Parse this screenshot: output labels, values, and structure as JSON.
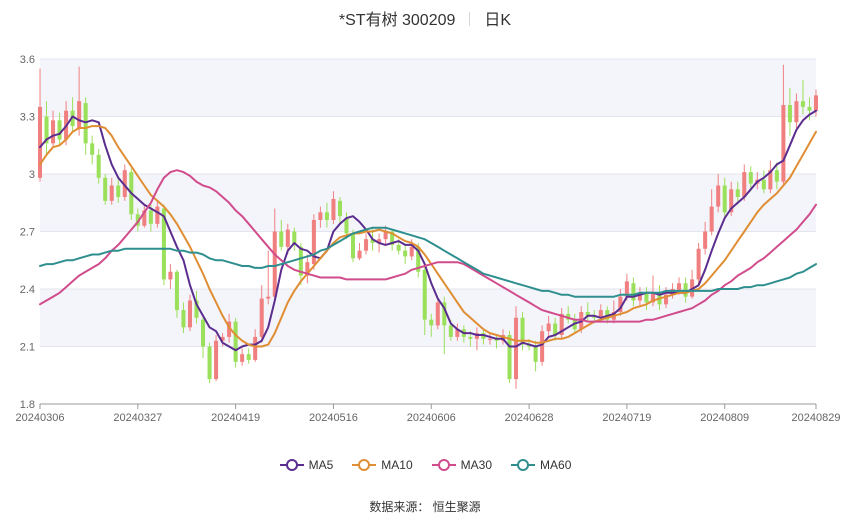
{
  "header": {
    "title": "*ST有树 300209",
    "period": "日K"
  },
  "source": "数据来源： 恒生聚源",
  "chart_data": {
    "type": "candlestick",
    "ylim": [
      1.8,
      3.6
    ],
    "yticks": [
      "1.8",
      "2.1",
      "2.4",
      "2.7",
      "3",
      "3.3",
      "3.6"
    ],
    "grid": true,
    "legend_position": "bottom",
    "up_color": "#f08080",
    "down_color": "#9be05a",
    "xlabels": [
      {
        "idx": 0,
        "label": "20240306"
      },
      {
        "idx": 15,
        "label": "20240327"
      },
      {
        "idx": 30,
        "label": "20240419"
      },
      {
        "idx": 45,
        "label": "20240516"
      },
      {
        "idx": 60,
        "label": "20240606"
      },
      {
        "idx": 75,
        "label": "20240628"
      },
      {
        "idx": 90,
        "label": "20240719"
      },
      {
        "idx": 105,
        "label": "20240809"
      },
      {
        "idx": 119,
        "label": "20240829"
      }
    ],
    "candles": [
      [
        2.98,
        3.35,
        3.55,
        2.96
      ],
      [
        3.3,
        3.16,
        3.38,
        3.1
      ],
      [
        3.16,
        3.28,
        3.33,
        3.14
      ],
      [
        3.28,
        3.18,
        3.32,
        3.15
      ],
      [
        3.18,
        3.33,
        3.38,
        3.15
      ],
      [
        3.33,
        3.25,
        3.4,
        3.22
      ],
      [
        3.24,
        3.38,
        3.56,
        3.2
      ],
      [
        3.37,
        3.16,
        3.4,
        3.1
      ],
      [
        3.16,
        3.1,
        3.2,
        3.05
      ],
      [
        3.1,
        2.98,
        3.13,
        2.95
      ],
      [
        2.98,
        2.86,
        3.0,
        2.84
      ],
      [
        2.86,
        2.94,
        2.98,
        2.84
      ],
      [
        2.94,
        2.88,
        2.99,
        2.85
      ],
      [
        2.88,
        3.02,
        3.05,
        2.86
      ],
      [
        3.01,
        2.79,
        3.03,
        2.76
      ],
      [
        2.79,
        2.73,
        2.82,
        2.7
      ],
      [
        2.73,
        2.81,
        2.84,
        2.72
      ],
      [
        2.81,
        2.74,
        2.84,
        2.7
      ],
      [
        2.74,
        2.83,
        2.86,
        2.72
      ],
      [
        2.82,
        2.45,
        2.84,
        2.42
      ],
      [
        2.45,
        2.49,
        2.53,
        2.4
      ],
      [
        2.49,
        2.29,
        2.5,
        2.25
      ],
      [
        2.29,
        2.2,
        2.33,
        2.17
      ],
      [
        2.2,
        2.34,
        2.37,
        2.18
      ],
      [
        2.34,
        2.25,
        2.39,
        2.22
      ],
      [
        2.24,
        2.1,
        2.26,
        2.04
      ],
      [
        2.1,
        1.93,
        2.12,
        1.91
      ],
      [
        1.93,
        2.13,
        2.16,
        1.92
      ],
      [
        2.13,
        2.15,
        2.17,
        2.1
      ],
      [
        2.15,
        2.23,
        2.27,
        2.12
      ],
      [
        2.23,
        2.02,
        2.25,
        1.99
      ],
      [
        2.02,
        2.06,
        2.09,
        2.0
      ],
      [
        2.06,
        2.03,
        2.09,
        2.01
      ],
      [
        2.03,
        2.15,
        2.19,
        2.02
      ],
      [
        2.15,
        2.35,
        2.42,
        2.12
      ],
      [
        2.35,
        2.36,
        2.6,
        2.32
      ],
      [
        2.36,
        2.7,
        2.82,
        2.35
      ],
      [
        2.7,
        2.62,
        2.76,
        2.6
      ],
      [
        2.62,
        2.71,
        2.74,
        2.58
      ],
      [
        2.7,
        2.63,
        2.72,
        2.6
      ],
      [
        2.62,
        2.47,
        2.64,
        2.42
      ],
      [
        2.47,
        2.54,
        2.58,
        2.43
      ],
      [
        2.53,
        2.76,
        2.79,
        2.5
      ],
      [
        2.76,
        2.8,
        2.83,
        2.72
      ],
      [
        2.8,
        2.76,
        2.85,
        2.72
      ],
      [
        2.76,
        2.87,
        2.91,
        2.74
      ],
      [
        2.86,
        2.78,
        2.88,
        2.74
      ],
      [
        2.77,
        2.69,
        2.8,
        2.66
      ],
      [
        2.69,
        2.56,
        2.71,
        2.54
      ],
      [
        2.56,
        2.6,
        2.64,
        2.55
      ],
      [
        2.6,
        2.66,
        2.69,
        2.58
      ],
      [
        2.66,
        2.64,
        2.72,
        2.6
      ],
      [
        2.64,
        2.66,
        2.69,
        2.59
      ],
      [
        2.66,
        2.7,
        2.73,
        2.63
      ],
      [
        2.7,
        2.63,
        2.71,
        2.6
      ],
      [
        2.63,
        2.6,
        2.66,
        2.58
      ],
      [
        2.6,
        2.57,
        2.63,
        2.53
      ],
      [
        2.57,
        2.62,
        2.66,
        2.55
      ],
      [
        2.62,
        2.49,
        2.64,
        2.46
      ],
      [
        2.5,
        2.24,
        2.52,
        2.16
      ],
      [
        2.24,
        2.21,
        2.27,
        2.15
      ],
      [
        2.21,
        2.33,
        2.35,
        2.19
      ],
      [
        2.33,
        2.21,
        2.36,
        2.06
      ],
      [
        2.21,
        2.15,
        2.24,
        2.13
      ],
      [
        2.15,
        2.19,
        2.22,
        2.13
      ],
      [
        2.19,
        2.15,
        2.21,
        2.12
      ],
      [
        2.15,
        2.14,
        2.18,
        2.1
      ],
      [
        2.14,
        2.17,
        2.2,
        2.08
      ],
      [
        2.17,
        2.14,
        2.19,
        2.11
      ],
      [
        2.14,
        2.14,
        2.17,
        2.11
      ],
      [
        2.14,
        2.13,
        2.16,
        2.09
      ],
      [
        2.13,
        2.16,
        2.19,
        2.11
      ],
      [
        2.16,
        1.93,
        2.18,
        1.91
      ],
      [
        1.93,
        2.25,
        2.31,
        1.88
      ],
      [
        2.25,
        2.11,
        2.28,
        2.08
      ],
      [
        2.11,
        2.1,
        2.14,
        2.08
      ],
      [
        2.1,
        2.02,
        2.13,
        1.97
      ],
      [
        2.02,
        2.18,
        2.21,
        2.0
      ],
      [
        2.18,
        2.22,
        2.26,
        2.15
      ],
      [
        2.22,
        2.16,
        2.25,
        2.13
      ],
      [
        2.16,
        2.27,
        2.3,
        2.14
      ],
      [
        2.27,
        2.24,
        2.31,
        2.22
      ],
      [
        2.24,
        2.19,
        2.27,
        2.17
      ],
      [
        2.19,
        2.28,
        2.31,
        2.17
      ],
      [
        2.28,
        2.26,
        2.33,
        2.23
      ],
      [
        2.26,
        2.25,
        2.29,
        2.22
      ],
      [
        2.25,
        2.29,
        2.32,
        2.23
      ],
      [
        2.29,
        2.24,
        2.31,
        2.22
      ],
      [
        2.24,
        2.28,
        2.34,
        2.22
      ],
      [
        2.28,
        2.36,
        2.4,
        2.26
      ],
      [
        2.36,
        2.44,
        2.48,
        2.34
      ],
      [
        2.43,
        2.34,
        2.46,
        2.31
      ],
      [
        2.34,
        2.38,
        2.41,
        2.31
      ],
      [
        2.38,
        2.33,
        2.41,
        2.29
      ],
      [
        2.33,
        2.38,
        2.47,
        2.31
      ],
      [
        2.38,
        2.32,
        2.42,
        2.29
      ],
      [
        2.32,
        2.37,
        2.41,
        2.3
      ],
      [
        2.37,
        2.4,
        2.43,
        2.35
      ],
      [
        2.39,
        2.43,
        2.46,
        2.37
      ],
      [
        2.43,
        2.36,
        2.46,
        2.33
      ],
      [
        2.36,
        2.45,
        2.5,
        2.35
      ],
      [
        2.45,
        2.61,
        2.64,
        2.42
      ],
      [
        2.61,
        2.7,
        2.75,
        2.58
      ],
      [
        2.7,
        2.83,
        2.92,
        2.68
      ],
      [
        2.83,
        2.94,
        3.0,
        2.8
      ],
      [
        2.94,
        2.8,
        2.98,
        2.77
      ],
      [
        2.8,
        2.92,
        2.96,
        2.78
      ],
      [
        2.92,
        2.88,
        2.96,
        2.84
      ],
      [
        2.88,
        3.01,
        3.05,
        2.86
      ],
      [
        3.01,
        2.95,
        3.04,
        2.91
      ],
      [
        2.95,
        2.97,
        3.01,
        2.92
      ],
      [
        2.97,
        2.92,
        3.02,
        2.9
      ],
      [
        2.92,
        3.02,
        3.07,
        2.9
      ],
      [
        3.02,
        2.96,
        3.06,
        2.92
      ],
      [
        2.96,
        3.36,
        3.57,
        2.94
      ],
      [
        3.36,
        3.27,
        3.45,
        3.2
      ],
      [
        3.27,
        3.38,
        3.42,
        3.24
      ],
      [
        3.38,
        3.35,
        3.49,
        3.31
      ],
      [
        3.35,
        3.33,
        3.4,
        3.28
      ],
      [
        3.33,
        3.41,
        3.44,
        3.3
      ]
    ],
    "series": [
      {
        "name": "MA5",
        "color": "#5b2d8f",
        "values": [
          3.14,
          3.18,
          3.2,
          3.21,
          3.25,
          3.3,
          3.28,
          3.27,
          3.28,
          3.27,
          3.15,
          3.05,
          2.98,
          2.94,
          2.9,
          2.87,
          2.84,
          2.82,
          2.8,
          2.78,
          2.7,
          2.62,
          2.55,
          2.42,
          2.32,
          2.26,
          2.2,
          2.18,
          2.12,
          2.1,
          2.08,
          2.1,
          2.11,
          2.11,
          2.13,
          2.2,
          2.34,
          2.5,
          2.6,
          2.64,
          2.61,
          2.6,
          2.57,
          2.56,
          2.6,
          2.7,
          2.74,
          2.77,
          2.78,
          2.75,
          2.71,
          2.66,
          2.64,
          2.63,
          2.64,
          2.65,
          2.63,
          2.63,
          2.6,
          2.53,
          2.43,
          2.35,
          2.3,
          2.22,
          2.19,
          2.17,
          2.17,
          2.16,
          2.16,
          2.15,
          2.14,
          2.14,
          2.1,
          2.1,
          2.12,
          2.11,
          2.1,
          2.11,
          2.15,
          2.16,
          2.18,
          2.2,
          2.22,
          2.23,
          2.26,
          2.26,
          2.25,
          2.26,
          2.27,
          2.3,
          2.36,
          2.36,
          2.37,
          2.38,
          2.38,
          2.37,
          2.38,
          2.38,
          2.38,
          2.38,
          2.4,
          2.42,
          2.5,
          2.6,
          2.69,
          2.77,
          2.82,
          2.85,
          2.88,
          2.92,
          2.96,
          2.98,
          3.01,
          3.05,
          3.07,
          3.15,
          3.23,
          3.28,
          3.31,
          3.33
        ]
      },
      {
        "name": "MA10",
        "color": "#e08e33",
        "values": [
          3.05,
          3.1,
          3.14,
          3.15,
          3.18,
          3.22,
          3.24,
          3.24,
          3.25,
          3.25,
          3.24,
          3.2,
          3.14,
          3.09,
          3.04,
          2.99,
          2.94,
          2.89,
          2.86,
          2.83,
          2.79,
          2.74,
          2.68,
          2.62,
          2.55,
          2.48,
          2.4,
          2.33,
          2.26,
          2.2,
          2.16,
          2.13,
          2.11,
          2.1,
          2.1,
          2.11,
          2.17,
          2.25,
          2.33,
          2.39,
          2.44,
          2.48,
          2.52,
          2.56,
          2.6,
          2.64,
          2.67,
          2.68,
          2.69,
          2.69,
          2.7,
          2.7,
          2.71,
          2.7,
          2.69,
          2.67,
          2.65,
          2.64,
          2.62,
          2.58,
          2.53,
          2.48,
          2.43,
          2.38,
          2.33,
          2.28,
          2.25,
          2.22,
          2.19,
          2.17,
          2.16,
          2.15,
          2.14,
          2.13,
          2.13,
          2.13,
          2.12,
          2.12,
          2.13,
          2.14,
          2.14,
          2.15,
          2.17,
          2.19,
          2.21,
          2.23,
          2.24,
          2.25,
          2.26,
          2.27,
          2.28,
          2.3,
          2.31,
          2.32,
          2.34,
          2.35,
          2.36,
          2.37,
          2.38,
          2.38,
          2.39,
          2.4,
          2.43,
          2.47,
          2.51,
          2.55,
          2.6,
          2.65,
          2.7,
          2.75,
          2.8,
          2.84,
          2.87,
          2.9,
          2.94,
          2.98,
          3.04,
          3.1,
          3.16,
          3.22
        ]
      },
      {
        "name": "MA30",
        "color": "#d04c8c",
        "values": [
          2.32,
          2.34,
          2.36,
          2.38,
          2.41,
          2.44,
          2.47,
          2.49,
          2.51,
          2.53,
          2.56,
          2.6,
          2.63,
          2.67,
          2.71,
          2.75,
          2.8,
          2.85,
          2.92,
          2.98,
          3.01,
          3.02,
          3.01,
          2.99,
          2.96,
          2.94,
          2.93,
          2.91,
          2.88,
          2.85,
          2.81,
          2.78,
          2.74,
          2.7,
          2.66,
          2.62,
          2.58,
          2.55,
          2.52,
          2.5,
          2.49,
          2.48,
          2.47,
          2.46,
          2.46,
          2.46,
          2.46,
          2.45,
          2.45,
          2.45,
          2.45,
          2.45,
          2.45,
          2.45,
          2.46,
          2.47,
          2.48,
          2.5,
          2.51,
          2.52,
          2.53,
          2.54,
          2.54,
          2.54,
          2.54,
          2.53,
          2.51,
          2.49,
          2.47,
          2.45,
          2.43,
          2.41,
          2.39,
          2.37,
          2.35,
          2.33,
          2.31,
          2.29,
          2.28,
          2.27,
          2.26,
          2.25,
          2.24,
          2.24,
          2.23,
          2.23,
          2.23,
          2.23,
          2.23,
          2.23,
          2.23,
          2.23,
          2.23,
          2.24,
          2.24,
          2.25,
          2.26,
          2.27,
          2.28,
          2.29,
          2.3,
          2.32,
          2.34,
          2.37,
          2.39,
          2.42,
          2.44,
          2.47,
          2.49,
          2.51,
          2.54,
          2.56,
          2.59,
          2.62,
          2.65,
          2.68,
          2.71,
          2.75,
          2.79,
          2.84
        ]
      },
      {
        "name": "MA60",
        "color": "#2f8f8f",
        "values": [
          2.52,
          2.53,
          2.53,
          2.54,
          2.55,
          2.55,
          2.56,
          2.57,
          2.58,
          2.58,
          2.59,
          2.6,
          2.6,
          2.61,
          2.61,
          2.61,
          2.61,
          2.61,
          2.61,
          2.61,
          2.61,
          2.6,
          2.6,
          2.59,
          2.59,
          2.58,
          2.56,
          2.55,
          2.55,
          2.54,
          2.53,
          2.52,
          2.52,
          2.51,
          2.51,
          2.52,
          2.52,
          2.53,
          2.54,
          2.55,
          2.56,
          2.57,
          2.58,
          2.6,
          2.61,
          2.63,
          2.65,
          2.67,
          2.69,
          2.7,
          2.71,
          2.72,
          2.72,
          2.72,
          2.71,
          2.7,
          2.69,
          2.68,
          2.67,
          2.66,
          2.64,
          2.62,
          2.6,
          2.58,
          2.56,
          2.54,
          2.52,
          2.5,
          2.48,
          2.47,
          2.46,
          2.45,
          2.44,
          2.43,
          2.42,
          2.41,
          2.4,
          2.39,
          2.39,
          2.38,
          2.37,
          2.37,
          2.36,
          2.36,
          2.36,
          2.36,
          2.36,
          2.36,
          2.36,
          2.37,
          2.37,
          2.37,
          2.38,
          2.38,
          2.38,
          2.38,
          2.39,
          2.39,
          2.39,
          2.39,
          2.39,
          2.39,
          2.39,
          2.39,
          2.4,
          2.4,
          2.4,
          2.4,
          2.41,
          2.41,
          2.42,
          2.42,
          2.43,
          2.44,
          2.45,
          2.46,
          2.48,
          2.49,
          2.51,
          2.53
        ]
      }
    ]
  }
}
